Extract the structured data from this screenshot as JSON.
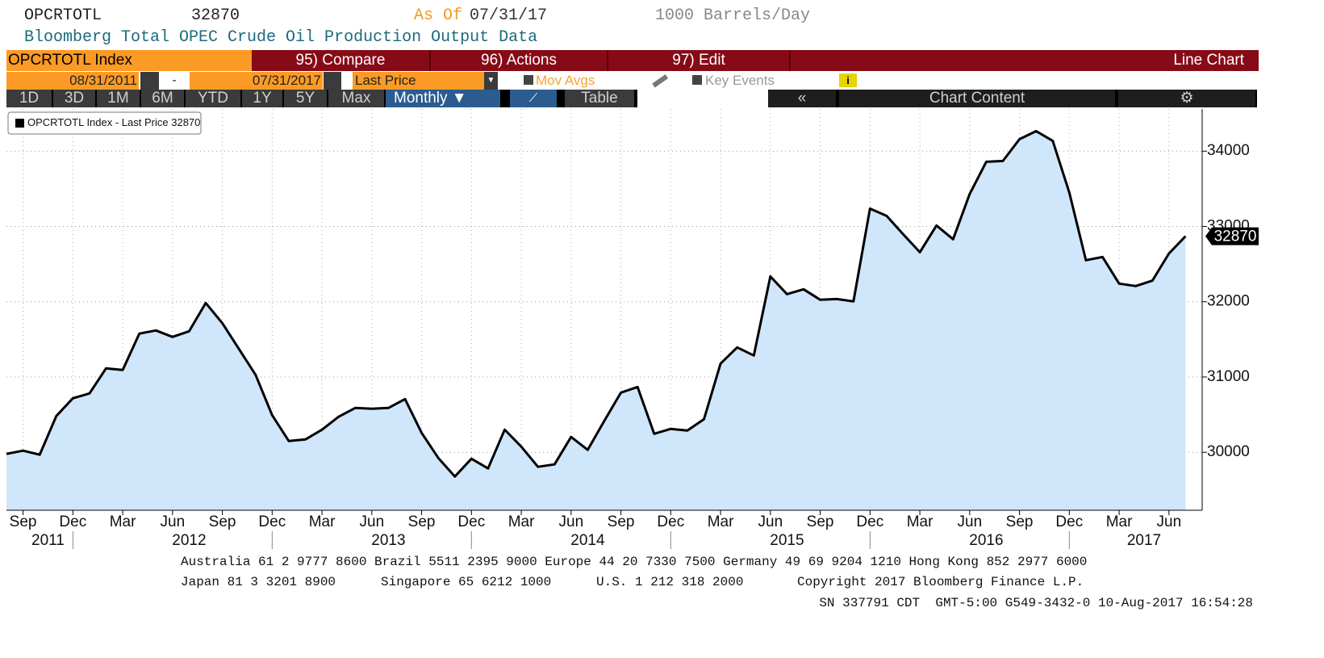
{
  "header": {
    "ticker": "OPCRTOTL",
    "as_of_label": "As Of",
    "as_of_date": "07/31/17",
    "units": "1000 Barrels/Day",
    "description": "Bloomberg Total OPEC Crude Oil Production Output Data"
  },
  "toolbar": {
    "security": "OPCRTOTL Index",
    "compare": "95) Compare",
    "actions": "96) Actions",
    "edit": "97) Edit",
    "chart_type": "Line Chart",
    "start_date": "08/31/2011",
    "date_separator": "-",
    "end_date": "07/31/2017",
    "field": "Last Price",
    "mov_avgs": "Mov Avgs",
    "key_events": "Key Events",
    "periods": [
      "1D",
      "3D",
      "1M",
      "6M",
      "YTD",
      "1Y",
      "5Y",
      "Max"
    ],
    "frequency": "Monthly",
    "table": "Table",
    "collapse": "«",
    "chart_content": "Chart Content"
  },
  "chart_data": {
    "type": "line",
    "fill": true,
    "grid": true,
    "legend": "top-left",
    "x": [
      "2011-08",
      "2011-09",
      "2011-10",
      "2011-11",
      "2011-12",
      "2012-01",
      "2012-02",
      "2012-03",
      "2012-04",
      "2012-05",
      "2012-06",
      "2012-07",
      "2012-08",
      "2012-09",
      "2012-10",
      "2012-11",
      "2012-12",
      "2013-01",
      "2013-02",
      "2013-03",
      "2013-04",
      "2013-05",
      "2013-06",
      "2013-07",
      "2013-08",
      "2013-09",
      "2013-10",
      "2013-11",
      "2013-12",
      "2014-01",
      "2014-02",
      "2014-03",
      "2014-04",
      "2014-05",
      "2014-06",
      "2014-07",
      "2014-08",
      "2014-09",
      "2014-10",
      "2014-11",
      "2014-12",
      "2015-01",
      "2015-02",
      "2015-03",
      "2015-04",
      "2015-05",
      "2015-06",
      "2015-07",
      "2015-08",
      "2015-09",
      "2015-10",
      "2015-11",
      "2015-12",
      "2016-01",
      "2016-02",
      "2016-03",
      "2016-04",
      "2016-05",
      "2016-06",
      "2016-07",
      "2016-08",
      "2016-09",
      "2016-10",
      "2016-11",
      "2016-12",
      "2017-01",
      "2017-02",
      "2017-03",
      "2017-04",
      "2017-05",
      "2017-06",
      "2017-07"
    ],
    "series": [
      {
        "name": "OPCRTOTL Index - Last Price",
        "color": "#000000",
        "fill_color": "#d0e6fb",
        "values": [
          29979,
          30021,
          29968,
          30482,
          30718,
          30782,
          31115,
          31093,
          31576,
          31618,
          31533,
          31608,
          31983,
          31715,
          31372,
          31029,
          30493,
          30150,
          30171,
          30300,
          30472,
          30589,
          30579,
          30589,
          30707,
          30257,
          29925,
          29678,
          29914,
          29786,
          30300,
          30075,
          29807,
          29839,
          30204,
          30032,
          30418,
          30793,
          30868,
          30246,
          30311,
          30289,
          30439,
          31179,
          31393,
          31286,
          32336,
          32101,
          32165,
          32026,
          32036,
          32004,
          33237,
          33140,
          32894,
          32658,
          33012,
          32830,
          33430,
          33859,
          33869,
          34159,
          34266,
          34137,
          33451,
          32551,
          32594,
          32240,
          32208,
          32280,
          32640,
          32870
        ]
      }
    ],
    "xlim": [
      "2011-08",
      "2017-08"
    ],
    "xticks": [
      {
        "value": "2011-09",
        "label": "Sep"
      },
      {
        "value": "2011-12",
        "label": "Dec"
      },
      {
        "value": "2012-03",
        "label": "Mar"
      },
      {
        "value": "2012-06",
        "label": "Jun"
      },
      {
        "value": "2012-09",
        "label": "Sep"
      },
      {
        "value": "2012-12",
        "label": "Dec"
      },
      {
        "value": "2013-03",
        "label": "Mar"
      },
      {
        "value": "2013-06",
        "label": "Jun"
      },
      {
        "value": "2013-09",
        "label": "Sep"
      },
      {
        "value": "2013-12",
        "label": "Dec"
      },
      {
        "value": "2014-03",
        "label": "Mar"
      },
      {
        "value": "2014-06",
        "label": "Jun"
      },
      {
        "value": "2014-09",
        "label": "Sep"
      },
      {
        "value": "2014-12",
        "label": "Dec"
      },
      {
        "value": "2015-03",
        "label": "Mar"
      },
      {
        "value": "2015-06",
        "label": "Jun"
      },
      {
        "value": "2015-09",
        "label": "Sep"
      },
      {
        "value": "2015-12",
        "label": "Dec"
      },
      {
        "value": "2016-03",
        "label": "Mar"
      },
      {
        "value": "2016-06",
        "label": "Jun"
      },
      {
        "value": "2016-09",
        "label": "Sep"
      },
      {
        "value": "2016-12",
        "label": "Dec"
      },
      {
        "value": "2017-03",
        "label": "Mar"
      },
      {
        "value": "2017-06",
        "label": "Jun"
      }
    ],
    "years": [
      "2011",
      "2012",
      "2013",
      "2014",
      "2015",
      "2016",
      "2017"
    ],
    "ylim": [
      29230,
      34560
    ],
    "yticks": [
      30000,
      31000,
      32000,
      33000,
      34000
    ]
  },
  "footer": {
    "phones": "Australia 61 2 9777 8600 Brazil 5511 2395 9000 Europe 44 20 7330 7500 Germany 49 69 9204 1210 Hong Kong 852 2977 6000",
    "japan": "Japan 81 3 3201 8900",
    "singapore": "Singapore 65 6212 1000",
    "us": "U.S. 1 212 318 2000",
    "copyright": "Copyright 2017 Bloomberg Finance L.P.",
    "session": "SN 337791 CDT  GMT-5:00 G549-3432-0 10-Aug-2017 16:54:28"
  }
}
